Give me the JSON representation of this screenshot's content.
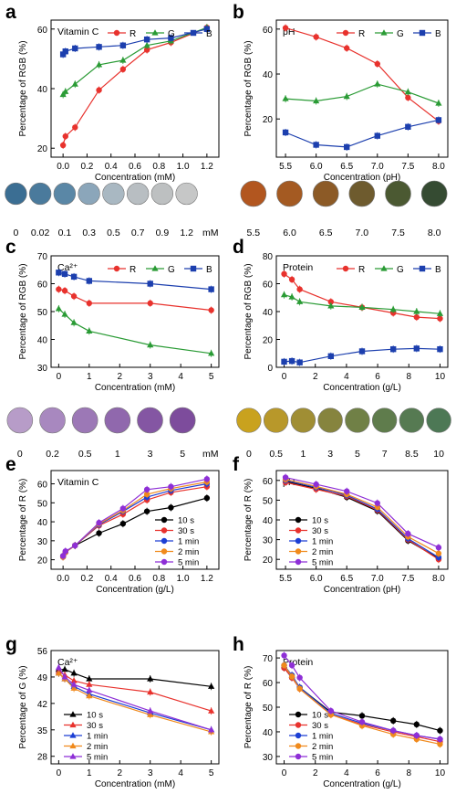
{
  "chart_data": [
    {
      "panel": "a",
      "type": "line",
      "title": "Vitamin C",
      "xlabel": "Concentration (mM)",
      "ylabel": "Percentage of RGB (%)",
      "xlim": [
        -0.1,
        1.3
      ],
      "ylim": [
        17,
        63
      ],
      "xticks": [
        "0.0",
        "0.2",
        "0.4",
        "0.6",
        "0.8",
        "1.0",
        "1.2"
      ],
      "xtick_values": [
        0,
        0.2,
        0.4,
        0.6,
        0.8,
        1.0,
        1.2
      ],
      "yticks": [
        "20",
        "40",
        "60"
      ],
      "ytick_values": [
        20,
        40,
        60
      ],
      "legend": "top-right",
      "series": [
        {
          "name": "R",
          "color": "#e8322d",
          "marker": "circle",
          "x": [
            0,
            0.02,
            0.1,
            0.3,
            0.5,
            0.7,
            0.9,
            1.2
          ],
          "values": [
            21,
            24,
            27,
            39.5,
            46.5,
            53,
            55.5,
            60.5
          ]
        },
        {
          "name": "G",
          "color": "#2a9b35",
          "marker": "triangle",
          "x": [
            0,
            0.02,
            0.1,
            0.3,
            0.5,
            0.7,
            0.9,
            1.2
          ],
          "values": [
            38,
            39,
            41.5,
            48,
            49.5,
            54.5,
            56,
            60.5
          ]
        },
        {
          "name": "B",
          "color": "#1c3fae",
          "marker": "square",
          "x": [
            0,
            0.02,
            0.1,
            0.3,
            0.5,
            0.7,
            0.9,
            1.2
          ],
          "values": [
            51.5,
            52.5,
            53.5,
            54,
            54.5,
            56.5,
            57,
            60
          ]
        }
      ],
      "strip": {
        "labels": [
          "0",
          "0.02",
          "0.1",
          "0.3",
          "0.5",
          "0.7",
          "0.9",
          "1.2"
        ],
        "unit": "mM",
        "colors": [
          "#3b6e93",
          "#4a7a9c",
          "#5a87a6",
          "#8ba6ba",
          "#a9b8c2",
          "#b8bec2",
          "#bdc0c1",
          "#c6c7c7"
        ]
      }
    },
    {
      "panel": "b",
      "type": "line",
      "title": "pH",
      "xlabel": "Concentration (pH)",
      "ylabel": "Percentage of RGB (%)",
      "xlim": [
        5.35,
        8.15
      ],
      "ylim": [
        3,
        64
      ],
      "xticks": [
        "5.5",
        "6.0",
        "6.5",
        "7.0",
        "7.5",
        "8.0"
      ],
      "xtick_values": [
        5.5,
        6.0,
        6.5,
        7.0,
        7.5,
        8.0
      ],
      "yticks": [
        "20",
        "40",
        "60"
      ],
      "ytick_values": [
        20,
        40,
        60
      ],
      "legend": "top-right",
      "series": [
        {
          "name": "R",
          "color": "#e8322d",
          "marker": "circle",
          "x": [
            5.5,
            6.0,
            6.5,
            7.0,
            7.5,
            8.0
          ],
          "values": [
            60.5,
            56.5,
            51.5,
            44.5,
            29.5,
            19
          ]
        },
        {
          "name": "G",
          "color": "#2a9b35",
          "marker": "triangle",
          "x": [
            5.5,
            6.0,
            6.5,
            7.0,
            7.5,
            8.0
          ],
          "values": [
            29,
            28,
            30,
            35.5,
            32,
            27
          ]
        },
        {
          "name": "B",
          "color": "#1c3fae",
          "marker": "square",
          "x": [
            5.5,
            6.0,
            6.5,
            7.0,
            7.5,
            8.0
          ],
          "values": [
            14,
            8.5,
            7.5,
            12.5,
            16.5,
            19.5
          ]
        }
      ],
      "strip": {
        "labels": [
          "5.5",
          "6.0",
          "6.5",
          "7.0",
          "7.5",
          "8.0"
        ],
        "unit": "",
        "colors": [
          "#b2561f",
          "#a45a22",
          "#8c5a26",
          "#6e5b2e",
          "#4b5932",
          "#354b32"
        ]
      }
    },
    {
      "panel": "c",
      "type": "line",
      "title": "Ca²⁺",
      "xlabel": "Concentration (mM)",
      "ylabel": "Percentage of RGB (%)",
      "xlim": [
        -0.25,
        5.25
      ],
      "ylim": [
        30,
        70
      ],
      "xticks": [
        "0",
        "1",
        "2",
        "3",
        "4",
        "5"
      ],
      "xtick_values": [
        0,
        1,
        2,
        3,
        4,
        5
      ],
      "yticks": [
        "30",
        "40",
        "50",
        "60",
        "70"
      ],
      "ytick_values": [
        30,
        40,
        50,
        60,
        70
      ],
      "legend": "top-right",
      "series": [
        {
          "name": "R",
          "color": "#e8322d",
          "marker": "circle",
          "x": [
            0,
            0.2,
            0.5,
            1,
            3,
            5
          ],
          "values": [
            58,
            57.5,
            55.5,
            53,
            53,
            50.5
          ]
        },
        {
          "name": "G",
          "color": "#2a9b35",
          "marker": "triangle",
          "x": [
            0,
            0.2,
            0.5,
            1,
            3,
            5
          ],
          "values": [
            51,
            49,
            46,
            43,
            38,
            35
          ]
        },
        {
          "name": "B",
          "color": "#1c3fae",
          "marker": "square",
          "x": [
            0,
            0.2,
            0.5,
            1,
            3,
            5
          ],
          "values": [
            64,
            63.5,
            62.5,
            61,
            60,
            58
          ]
        }
      ],
      "strip": {
        "labels": [
          "0",
          "0.2",
          "0.5",
          "1",
          "3",
          "5"
        ],
        "unit": "mM",
        "colors": [
          "#b79cc8",
          "#a888bf",
          "#9c78b6",
          "#9068ad",
          "#8456a3",
          "#7d4c9c"
        ]
      }
    },
    {
      "panel": "d",
      "type": "line",
      "title": "Protein",
      "xlabel": "Concentration (g/L)",
      "ylabel": "Percentage of RGB (%)",
      "xlim": [
        -0.5,
        10.5
      ],
      "ylim": [
        0,
        80
      ],
      "xticks": [
        "0",
        "2",
        "4",
        "6",
        "8",
        "10"
      ],
      "xtick_values": [
        0,
        2,
        4,
        6,
        8,
        10
      ],
      "yticks": [
        "0",
        "20",
        "40",
        "60",
        "80"
      ],
      "ytick_values": [
        0,
        20,
        40,
        60,
        80
      ],
      "legend": "top-right",
      "series": [
        {
          "name": "R",
          "color": "#e8322d",
          "marker": "circle",
          "x": [
            0,
            0.5,
            1,
            3,
            5,
            7,
            8.5,
            10
          ],
          "values": [
            67,
            63,
            56,
            47,
            43,
            39,
            36,
            35
          ]
        },
        {
          "name": "G",
          "color": "#2a9b35",
          "marker": "triangle",
          "x": [
            0,
            0.5,
            1,
            3,
            5,
            7,
            8.5,
            10
          ],
          "values": [
            52,
            50.5,
            47,
            44,
            43,
            41.5,
            40,
            38.5
          ]
        },
        {
          "name": "B",
          "color": "#1c3fae",
          "marker": "square",
          "x": [
            0,
            0.5,
            1,
            3,
            5,
            7,
            8.5,
            10
          ],
          "values": [
            4,
            4.5,
            3.5,
            8,
            11.5,
            13,
            13.5,
            13
          ]
        }
      ],
      "strip": {
        "labels": [
          "0",
          "0.5",
          "1",
          "3",
          "5",
          "7",
          "8.5",
          "10"
        ],
        "unit": "g/L",
        "colors": [
          "#c9a21e",
          "#b8982a",
          "#a08e34",
          "#86843e",
          "#708046",
          "#5f7c4c",
          "#567a52",
          "#4d7855"
        ]
      }
    },
    {
      "panel": "e",
      "type": "line",
      "title": "Vitamin C",
      "xlabel": "Concentration (g/L)",
      "ylabel": "Percentage of R (%)",
      "xlim": [
        -0.1,
        1.3
      ],
      "ylim": [
        15,
        67
      ],
      "xticks": [
        "0.0",
        "0.2",
        "0.4",
        "0.6",
        "0.8",
        "1.0",
        "1.2"
      ],
      "xtick_values": [
        0,
        0.2,
        0.4,
        0.6,
        0.8,
        1.0,
        1.2
      ],
      "yticks": [
        "20",
        "30",
        "40",
        "50",
        "60"
      ],
      "ytick_values": [
        20,
        30,
        40,
        50,
        60
      ],
      "legend": "bottom-right",
      "series": [
        {
          "name": "10 s",
          "color": "#000000",
          "marker": "circle",
          "x": [
            0,
            0.02,
            0.1,
            0.3,
            0.5,
            0.7,
            0.9,
            1.2
          ],
          "values": [
            22,
            24,
            27.5,
            34,
            39,
            45.5,
            47.5,
            52.5
          ]
        },
        {
          "name": "30 s",
          "color": "#e8322d",
          "marker": "circle",
          "x": [
            0,
            0.02,
            0.1,
            0.3,
            0.5,
            0.7,
            0.9,
            1.2
          ],
          "values": [
            21.5,
            24,
            27.5,
            38,
            44,
            51.5,
            55.5,
            58.5
          ]
        },
        {
          "name": "1 min",
          "color": "#1c3fd4",
          "marker": "circle",
          "x": [
            0,
            0.02,
            0.1,
            0.3,
            0.5,
            0.7,
            0.9,
            1.2
          ],
          "values": [
            21.5,
            24,
            27.5,
            38.5,
            45.5,
            53,
            56.5,
            60
          ]
        },
        {
          "name": "2 min",
          "color": "#f08a1c",
          "marker": "circle",
          "x": [
            0,
            0.02,
            0.1,
            0.3,
            0.5,
            0.7,
            0.9,
            1.2
          ],
          "values": [
            21.5,
            24,
            27.5,
            39,
            46,
            54.5,
            57.5,
            61
          ]
        },
        {
          "name": "5 min",
          "color": "#8e2fd6",
          "marker": "circle",
          "x": [
            0,
            0.02,
            0.1,
            0.3,
            0.5,
            0.7,
            0.9,
            1.2
          ],
          "values": [
            22,
            24.5,
            27.5,
            39.5,
            47,
            57,
            58.5,
            62.5
          ]
        }
      ]
    },
    {
      "panel": "f",
      "type": "line",
      "title": "pH",
      "xlabel": "Concentration (pH)",
      "ylabel": "Percentage of R (%)",
      "xlim": [
        5.35,
        8.15
      ],
      "ylim": [
        15,
        65
      ],
      "xticks": [
        "5.5",
        "6.0",
        "6.5",
        "7.0",
        "7.5",
        "8.0"
      ],
      "xtick_values": [
        5.5,
        6.0,
        6.5,
        7.0,
        7.5,
        8.0
      ],
      "yticks": [
        "20",
        "30",
        "40",
        "50",
        "60"
      ],
      "ytick_values": [
        20,
        30,
        40,
        50,
        60
      ],
      "legend": "bottom-left",
      "series": [
        {
          "name": "10 s",
          "color": "#000000",
          "marker": "circle",
          "x": [
            5.5,
            6.0,
            6.5,
            7.0,
            7.5,
            8.0
          ],
          "values": [
            59.5,
            56,
            51.5,
            44.5,
            29.5,
            20.5
          ]
        },
        {
          "name": "30 s",
          "color": "#e8322d",
          "marker": "circle",
          "x": [
            5.5,
            6.0,
            6.5,
            7.0,
            7.5,
            8.0
          ],
          "values": [
            59,
            55.5,
            52,
            45,
            30,
            20
          ]
        },
        {
          "name": "1 min",
          "color": "#1c3fd4",
          "marker": "circle",
          "x": [
            5.5,
            6.0,
            6.5,
            7.0,
            7.5,
            8.0
          ],
          "values": [
            60,
            56.5,
            52.5,
            45.5,
            30.5,
            21
          ]
        },
        {
          "name": "2 min",
          "color": "#f08a1c",
          "marker": "circle",
          "x": [
            5.5,
            6.0,
            6.5,
            7.0,
            7.5,
            8.0
          ],
          "values": [
            60.5,
            57,
            53,
            46.5,
            31.5,
            23
          ]
        },
        {
          "name": "5 min",
          "color": "#8e2fd6",
          "marker": "circle",
          "x": [
            5.5,
            6.0,
            6.5,
            7.0,
            7.5,
            8.0
          ],
          "values": [
            61.5,
            58,
            54.5,
            48.5,
            33,
            26
          ]
        }
      ]
    },
    {
      "panel": "g",
      "type": "line",
      "title": "Ca²⁺",
      "xlabel": "Concentration (mM)",
      "ylabel": "Percentage of G (%)",
      "xlim": [
        -0.25,
        5.25
      ],
      "ylim": [
        26,
        56
      ],
      "xticks": [
        "0",
        "1",
        "2",
        "3",
        "4",
        "5"
      ],
      "xtick_values": [
        0,
        1,
        2,
        3,
        4,
        5
      ],
      "yticks": [
        "28",
        "35",
        "42",
        "49",
        "56"
      ],
      "ytick_values": [
        28,
        35,
        42,
        49,
        56
      ],
      "legend": "bottom-left",
      "series": [
        {
          "name": "10 s",
          "color": "#000000",
          "marker": "triangle",
          "x": [
            0,
            0.2,
            0.5,
            1,
            3,
            5
          ],
          "values": [
            51,
            51,
            50,
            48.5,
            48.5,
            46.5
          ]
        },
        {
          "name": "30 s",
          "color": "#e8322d",
          "marker": "triangle",
          "x": [
            0,
            0.2,
            0.5,
            1,
            3,
            5
          ],
          "values": [
            50.5,
            49.5,
            48,
            47,
            45,
            40
          ]
        },
        {
          "name": "1 min",
          "color": "#1c3fd4",
          "marker": "triangle",
          "x": [
            0,
            0.2,
            0.5,
            1,
            3,
            5
          ],
          "values": [
            50,
            48.5,
            46.5,
            44.5,
            39.5,
            35
          ]
        },
        {
          "name": "2 min",
          "color": "#f08a1c",
          "marker": "triangle",
          "x": [
            0,
            0.2,
            0.5,
            1,
            3,
            5
          ],
          "values": [
            50,
            48.5,
            46,
            44,
            39,
            34.5
          ]
        },
        {
          "name": "5 min",
          "color": "#8e2fd6",
          "marker": "triangle",
          "x": [
            0,
            0.2,
            0.5,
            1,
            3,
            5
          ],
          "values": [
            51.5,
            49,
            47,
            45.5,
            40,
            35
          ]
        }
      ]
    },
    {
      "panel": "h",
      "type": "line",
      "title": "Protein",
      "xlabel": "Concentration (g/L)",
      "ylabel": "Percentage of R (%)",
      "xlim": [
        -0.5,
        10.5
      ],
      "ylim": [
        27,
        73
      ],
      "xticks": [
        "0",
        "2",
        "4",
        "6",
        "8",
        "10"
      ],
      "xtick_values": [
        0,
        2,
        4,
        6,
        8,
        10
      ],
      "yticks": [
        "30",
        "40",
        "50",
        "60",
        "70"
      ],
      "ytick_values": [
        30,
        40,
        50,
        60,
        70
      ],
      "legend": "bottom-left",
      "series": [
        {
          "name": "10 s",
          "color": "#000000",
          "marker": "circle",
          "x": [
            0,
            0.5,
            1,
            3,
            5,
            7,
            8.5,
            10
          ],
          "values": [
            66,
            62,
            58,
            48,
            46.5,
            44.5,
            43,
            40.5
          ]
        },
        {
          "name": "30 s",
          "color": "#e8322d",
          "marker": "circle",
          "x": [
            0,
            0.5,
            1,
            3,
            5,
            7,
            8.5,
            10
          ],
          "values": [
            66,
            62,
            57.5,
            47,
            43,
            40,
            38,
            36
          ]
        },
        {
          "name": "1 min",
          "color": "#1c3fd4",
          "marker": "circle",
          "x": [
            0,
            0.5,
            1,
            3,
            5,
            7,
            8.5,
            10
          ],
          "values": [
            67,
            63,
            58,
            47.5,
            43.5,
            40.5,
            38.5,
            37
          ]
        },
        {
          "name": "2 min",
          "color": "#f08a1c",
          "marker": "circle",
          "x": [
            0,
            0.5,
            1,
            3,
            5,
            7,
            8.5,
            10
          ],
          "values": [
            67,
            62.5,
            57.5,
            47,
            42.5,
            39,
            37,
            35
          ]
        },
        {
          "name": "5 min",
          "color": "#8e2fd6",
          "marker": "circle",
          "x": [
            0,
            0.5,
            1,
            3,
            5,
            7,
            8.5,
            10
          ],
          "values": [
            71,
            67,
            62,
            48.5,
            44,
            40.5,
            38.5,
            37
          ]
        }
      ]
    }
  ]
}
